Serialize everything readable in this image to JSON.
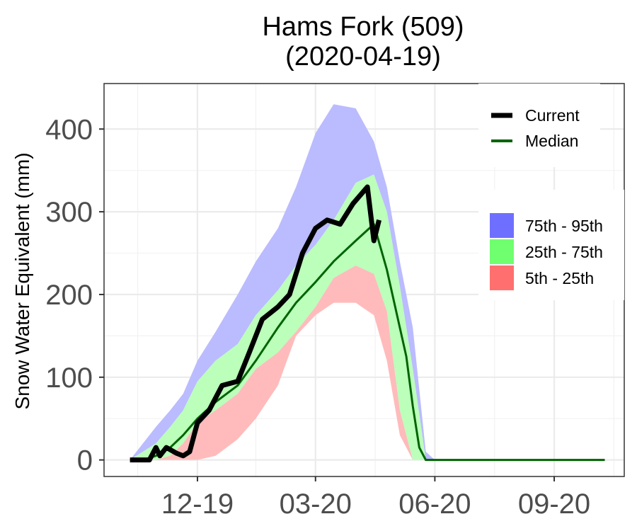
{
  "chart_data": {
    "type": "area",
    "title": "Hams Fork (509)",
    "subtitle": "(2020-04-19)",
    "xlabel": "",
    "ylabel": "Snow Water Equivalent (mm)",
    "x_ticks": [
      {
        "label": "12-19",
        "date": "2019-12-01"
      },
      {
        "label": "03-20",
        "date": "2020-03-01"
      },
      {
        "label": "06-20",
        "date": "2020-06-01"
      },
      {
        "label": "09-20",
        "date": "2020-09-01"
      }
    ],
    "xlim": [
      "2019-09-20",
      "2020-10-25"
    ],
    "y_ticks": [
      0,
      100,
      200,
      300,
      400
    ],
    "ylim": [
      -20,
      455
    ],
    "grid": true,
    "legend_lines": [
      {
        "name": "Current",
        "color": "#000000"
      },
      {
        "name": "Median",
        "color": "#006400"
      }
    ],
    "legend_bands": [
      {
        "name": "75th - 95th",
        "color": "#6f6fff"
      },
      {
        "name": "25th - 75th",
        "color": "#6fff6f"
      },
      {
        "name": "5th - 25th",
        "color": "#ff6f6f"
      }
    ],
    "band_colors": {
      "p75_p95": "#bbbbff",
      "p25_p75": "#bbffbb",
      "p5_p25": "#ffbbbb"
    },
    "percentiles": {
      "dates": [
        "2019-10-10",
        "2019-10-20",
        "2019-10-30",
        "2019-11-10",
        "2019-11-20",
        "2019-12-01",
        "2019-12-15",
        "2020-01-01",
        "2020-01-15",
        "2020-02-01",
        "2020-02-15",
        "2020-03-01",
        "2020-03-15",
        "2020-04-01",
        "2020-04-15",
        "2020-04-25",
        "2020-05-05",
        "2020-05-15",
        "2020-05-25",
        "2020-06-01",
        "2020-06-05",
        "2020-06-10"
      ],
      "p5": [
        0,
        0,
        0,
        0,
        0,
        0,
        5,
        25,
        50,
        90,
        150,
        175,
        190,
        190,
        175,
        120,
        30,
        0,
        0,
        0,
        0,
        0
      ],
      "p25": [
        0,
        0,
        0,
        5,
        20,
        45,
        60,
        80,
        110,
        130,
        155,
        185,
        220,
        235,
        225,
        180,
        60,
        0,
        0,
        0,
        0,
        0
      ],
      "p75": [
        0,
        10,
        20,
        40,
        60,
        95,
        120,
        140,
        175,
        205,
        235,
        260,
        290,
        335,
        345,
        300,
        210,
        110,
        0,
        0,
        0,
        0
      ],
      "p95": [
        0,
        20,
        40,
        60,
        80,
        120,
        155,
        200,
        240,
        280,
        330,
        395,
        430,
        425,
        385,
        330,
        240,
        160,
        10,
        0,
        0,
        0
      ]
    },
    "series": [
      {
        "name": "Median",
        "dates": [
          "2019-10-10",
          "2019-10-20",
          "2019-10-30",
          "2019-11-10",
          "2019-11-20",
          "2019-12-01",
          "2019-12-15",
          "2020-01-01",
          "2020-01-15",
          "2020-02-01",
          "2020-02-15",
          "2020-03-01",
          "2020-03-15",
          "2020-04-01",
          "2020-04-15",
          "2020-04-25",
          "2020-05-05",
          "2020-05-10",
          "2020-05-15",
          "2020-05-20",
          "2020-05-25",
          "2020-06-01",
          "2020-07-01",
          "2020-08-01",
          "2020-09-01",
          "2020-10-10"
        ],
        "values": [
          0,
          0,
          5,
          15,
          30,
          50,
          70,
          90,
          120,
          160,
          190,
          215,
          240,
          265,
          285,
          230,
          160,
          125,
          65,
          15,
          0,
          0,
          0,
          0,
          0,
          0
        ]
      },
      {
        "name": "Current",
        "dates": [
          "2019-10-10",
          "2019-10-25",
          "2019-10-30",
          "2019-11-02",
          "2019-11-07",
          "2019-11-15",
          "2019-11-20",
          "2019-11-25",
          "2019-12-01",
          "2019-12-10",
          "2019-12-20",
          "2020-01-01",
          "2020-01-10",
          "2020-01-20",
          "2020-02-01",
          "2020-02-10",
          "2020-02-20",
          "2020-02-25",
          "2020-03-01",
          "2020-03-10",
          "2020-03-20",
          "2020-03-30",
          "2020-04-10",
          "2020-04-15",
          "2020-04-19"
        ],
        "values": [
          0,
          0,
          15,
          5,
          15,
          8,
          5,
          10,
          45,
          60,
          90,
          95,
          130,
          170,
          185,
          200,
          250,
          265,
          280,
          290,
          285,
          310,
          330,
          265,
          290
        ]
      }
    ]
  }
}
